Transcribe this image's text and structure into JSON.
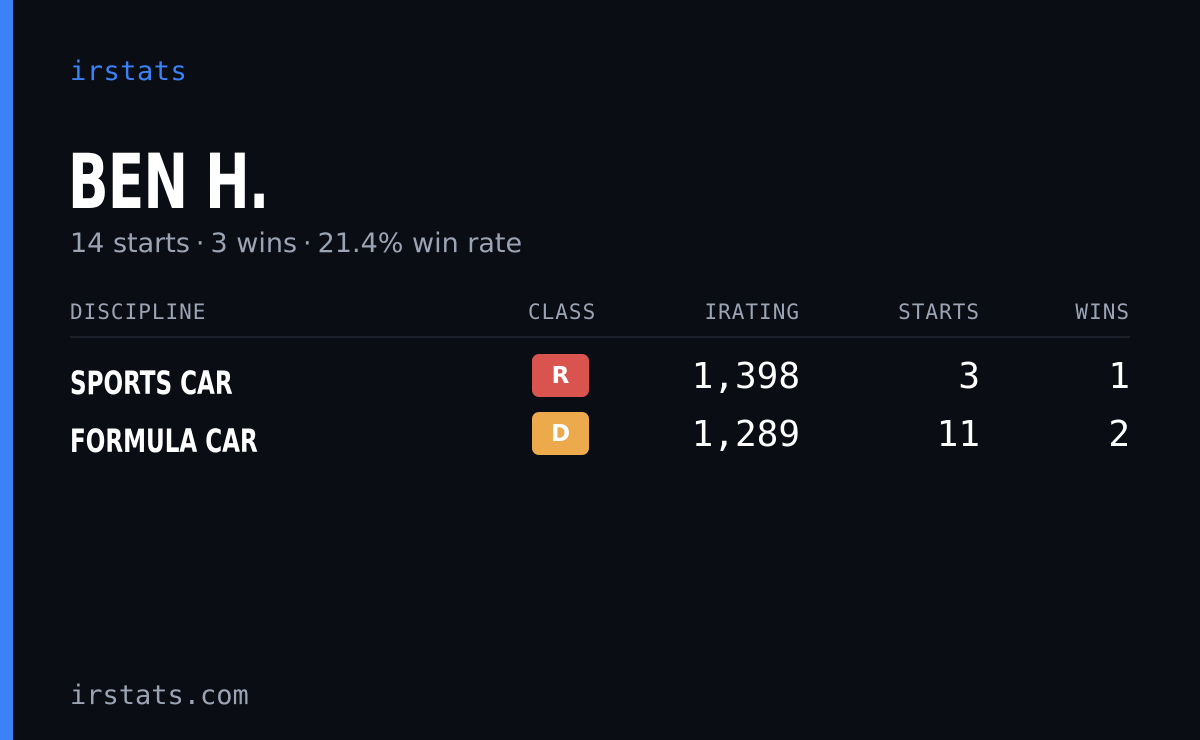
{
  "brand": "irstats",
  "driver": {
    "name": "BEN H.",
    "summary": {
      "starts": "14 starts",
      "wins": "3 wins",
      "win_rate": "21.4% win rate",
      "separator": "·"
    }
  },
  "table": {
    "headers": {
      "discipline": "DISCIPLINE",
      "class": "CLASS",
      "irating": "IRATING",
      "starts": "STARTS",
      "wins": "WINS"
    },
    "rows": [
      {
        "discipline": "SPORTS CAR",
        "class": "R",
        "class_color": "#d9534f",
        "class_text_color": "#ffffff",
        "irating": "1,398",
        "starts": "3",
        "wins": "1"
      },
      {
        "discipline": "FORMULA CAR",
        "class": "D",
        "class_color": "#ecaa4c",
        "class_text_color": "#ffffff",
        "irating": "1,289",
        "starts": "11",
        "wins": "2"
      }
    ]
  },
  "footer": {
    "domain": "irstats.com"
  },
  "colors": {
    "background": "#0a0d14",
    "accent": "#3b82f6",
    "muted_text": "#9aa4b4"
  }
}
